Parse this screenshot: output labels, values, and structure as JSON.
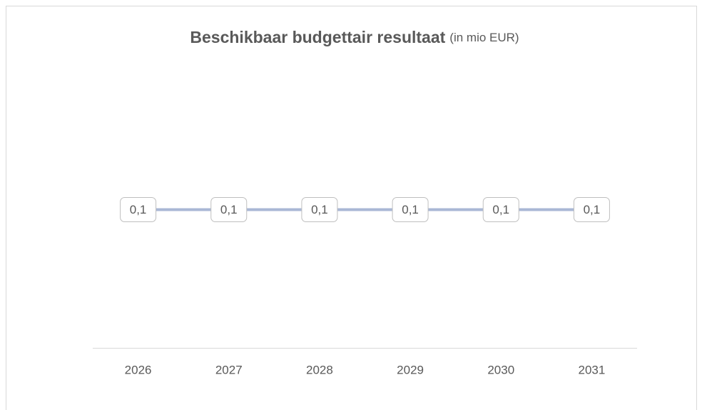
{
  "chart_data": {
    "type": "line",
    "title": "Beschikbaar budgettair resultaat",
    "subtitle": "(in mio EUR)",
    "categories": [
      "2026",
      "2027",
      "2028",
      "2029",
      "2030",
      "2031"
    ],
    "series": [
      {
        "color": "#a9b7d5",
        "values": [
          0.1,
          0.1,
          0.1,
          0.1,
          0.1,
          0.1
        ],
        "value_labels": [
          "0,1",
          "0,1",
          "0,1",
          "0,1",
          "0,1",
          "0,1"
        ]
      }
    ],
    "ylim": [
      0,
      0.2
    ]
  }
}
